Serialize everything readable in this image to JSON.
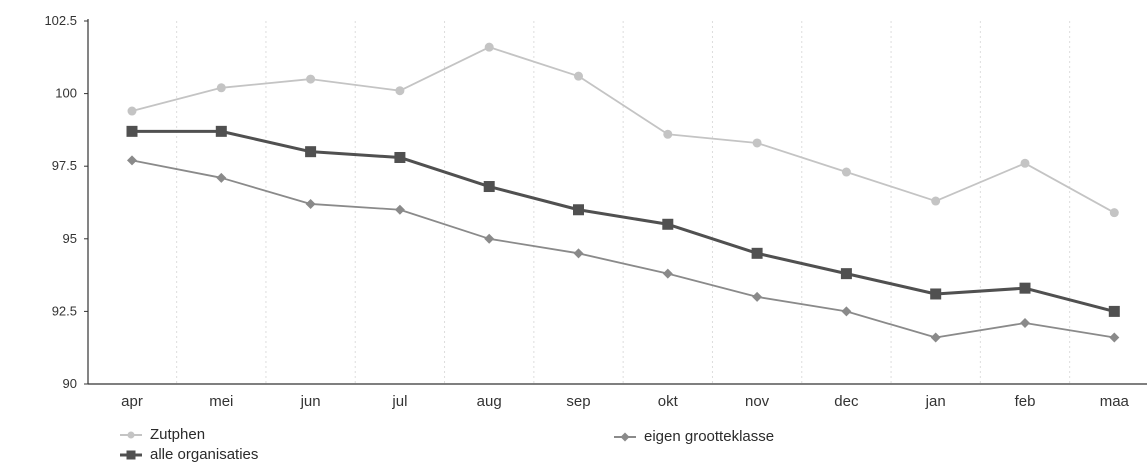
{
  "chart_data": {
    "type": "line",
    "categories": [
      "apr",
      "mei",
      "jun",
      "jul",
      "aug",
      "sep",
      "okt",
      "nov",
      "dec",
      "jan",
      "feb",
      "maa"
    ],
    "ylim": [
      90,
      102.5
    ],
    "yticks": [
      "90",
      "92.5",
      "95",
      "97.5",
      "100",
      "102.5"
    ],
    "grid": "vertical dotted",
    "legend_position": "bottom",
    "series": [
      {
        "name": "Zutphen",
        "marker": "circle",
        "color": "#c4c4c4",
        "values": [
          99.4,
          100.2,
          100.5,
          100.1,
          101.6,
          100.6,
          98.6,
          98.3,
          97.3,
          96.3,
          97.6,
          95.9
        ]
      },
      {
        "name": "alle organisaties",
        "marker": "square",
        "color": "#505050",
        "values": [
          98.7,
          98.7,
          98.0,
          97.8,
          96.8,
          96.0,
          95.5,
          94.5,
          93.8,
          93.1,
          93.3,
          92.5
        ]
      },
      {
        "name": "eigen grootteklasse",
        "marker": "diamond",
        "color": "#8a8a8a",
        "values": [
          97.7,
          97.1,
          96.2,
          96.0,
          95.0,
          94.5,
          93.8,
          93.0,
          92.5,
          91.6,
          92.1,
          91.6
        ]
      }
    ]
  }
}
